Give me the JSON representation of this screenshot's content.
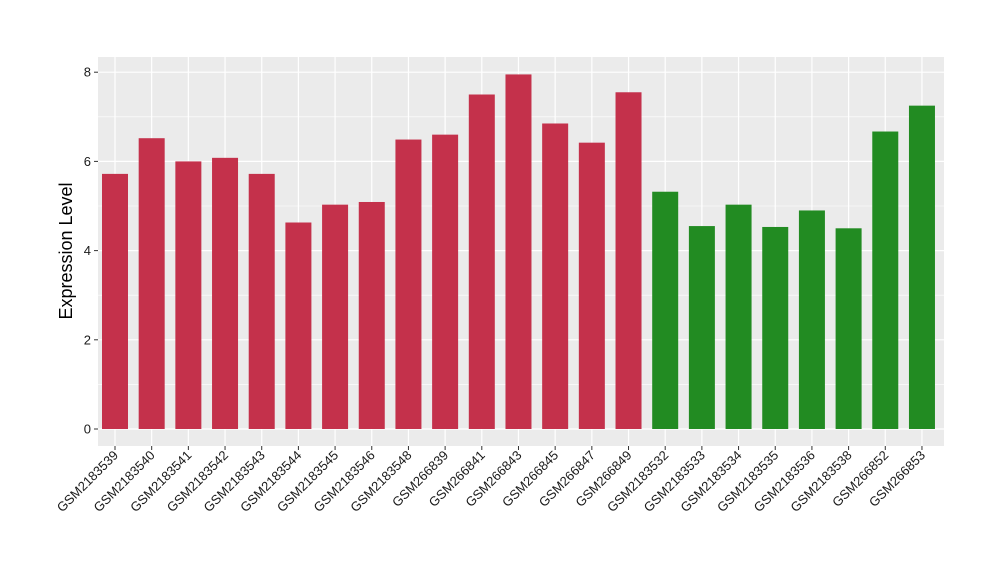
{
  "chart_data": {
    "type": "bar",
    "title": "",
    "xlabel": "",
    "ylabel": "Expression Level",
    "ylim": [
      0,
      8.3
    ],
    "yticks": [
      0,
      2,
      4,
      6,
      8
    ],
    "grid": true,
    "legend": "none",
    "colors": {
      "group1": "#C4314B",
      "group2": "#228B22",
      "panel_bg": "#EBEBEB",
      "grid": "#FFFFFF"
    },
    "categories": [
      "GSM2183539",
      "GSM2183540",
      "GSM2183541",
      "GSM2183542",
      "GSM2183543",
      "GSM2183544",
      "GSM2183545",
      "GSM2183546",
      "GSM2183548",
      "GSM266839",
      "GSM266841",
      "GSM266843",
      "GSM266845",
      "GSM266847",
      "GSM266849",
      "GSM2183532",
      "GSM2183533",
      "GSM2183534",
      "GSM2183535",
      "GSM2183536",
      "GSM2183538",
      "GSM266852",
      "GSM266853"
    ],
    "values": [
      5.72,
      6.52,
      6.0,
      6.08,
      5.72,
      4.63,
      5.03,
      5.09,
      6.49,
      6.6,
      7.5,
      7.95,
      6.85,
      6.42,
      7.55,
      5.32,
      4.55,
      5.03,
      4.53,
      4.9,
      4.5,
      6.67,
      7.25
    ],
    "groups": [
      "group1",
      "group1",
      "group1",
      "group1",
      "group1",
      "group1",
      "group1",
      "group1",
      "group1",
      "group1",
      "group1",
      "group1",
      "group1",
      "group1",
      "group1",
      "group2",
      "group2",
      "group2",
      "group2",
      "group2",
      "group2",
      "group2",
      "group2"
    ]
  }
}
